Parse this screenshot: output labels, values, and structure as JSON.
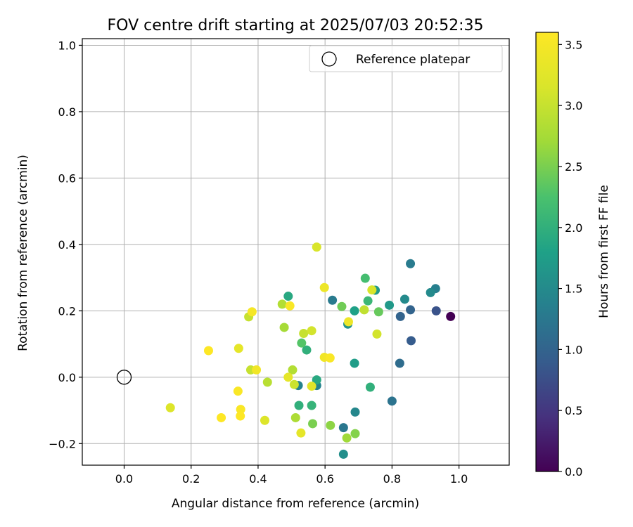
{
  "chart_data": {
    "type": "scatter",
    "title": "FOV centre drift starting at 2025/07/03 20:52:35",
    "xlabel": "Angular distance from reference (arcmin)",
    "ylabel": "Rotation from reference (arcmin)",
    "xlim": [
      -0.125,
      1.15
    ],
    "ylim": [
      -0.265,
      1.02
    ],
    "x_ticks": [
      0.0,
      0.2,
      0.4,
      0.6,
      0.8,
      1.0
    ],
    "x_tick_labels": [
      "0.0",
      "0.2",
      "0.4",
      "0.6",
      "0.8",
      "1.0"
    ],
    "y_ticks": [
      -0.2,
      0.0,
      0.2,
      0.4,
      0.6,
      0.8,
      1.0
    ],
    "y_tick_labels": [
      "−0.2",
      "0.0",
      "0.2",
      "0.4",
      "0.6",
      "0.8",
      "1.0"
    ],
    "grid": true,
    "legend": {
      "position": "top-right",
      "entries": [
        "Reference platepar"
      ]
    },
    "colorbar": {
      "label": "Hours from first FF file",
      "colormap": "viridis",
      "range": [
        0.0,
        3.6
      ],
      "ticks": [
        0.0,
        0.5,
        1.0,
        1.5,
        2.0,
        2.5,
        3.0,
        3.5
      ],
      "tick_labels": [
        "0.0",
        "0.5",
        "1.0",
        "1.5",
        "2.0",
        "2.5",
        "3.0",
        "3.5"
      ]
    },
    "reference_point": {
      "x": 0.0,
      "y": 0.0
    },
    "points": [
      {
        "x": 0.975,
        "y": 0.183,
        "c": 0.0
      },
      {
        "x": 0.932,
        "y": 0.2,
        "c": 0.8
      },
      {
        "x": 0.857,
        "y": 0.11,
        "c": 0.9
      },
      {
        "x": 0.825,
        "y": 0.183,
        "c": 1.0
      },
      {
        "x": 0.855,
        "y": 0.203,
        "c": 1.0
      },
      {
        "x": 0.823,
        "y": 0.042,
        "c": 1.1
      },
      {
        "x": 0.8,
        "y": -0.072,
        "c": 1.2
      },
      {
        "x": 0.655,
        "y": -0.152,
        "c": 1.25
      },
      {
        "x": 0.622,
        "y": 0.232,
        "c": 1.3
      },
      {
        "x": 0.855,
        "y": 0.342,
        "c": 1.3
      },
      {
        "x": 0.93,
        "y": 0.267,
        "c": 1.35
      },
      {
        "x": 0.52,
        "y": -0.025,
        "c": 1.4
      },
      {
        "x": 0.575,
        "y": -0.025,
        "c": 1.4
      },
      {
        "x": 0.69,
        "y": -0.105,
        "c": 1.45
      },
      {
        "x": 0.915,
        "y": 0.255,
        "c": 1.5
      },
      {
        "x": 0.838,
        "y": 0.235,
        "c": 1.5
      },
      {
        "x": 0.655,
        "y": -0.232,
        "c": 1.55
      },
      {
        "x": 0.668,
        "y": 0.16,
        "c": 1.6
      },
      {
        "x": 0.75,
        "y": 0.262,
        "c": 1.7
      },
      {
        "x": 0.792,
        "y": 0.217,
        "c": 1.7
      },
      {
        "x": 0.688,
        "y": 0.042,
        "c": 1.75
      },
      {
        "x": 0.688,
        "y": 0.2,
        "c": 1.8
      },
      {
        "x": 0.49,
        "y": 0.244,
        "c": 1.9
      },
      {
        "x": 0.575,
        "y": -0.008,
        "c": 1.9
      },
      {
        "x": 0.545,
        "y": 0.082,
        "c": 2.0
      },
      {
        "x": 0.735,
        "y": -0.03,
        "c": 2.0
      },
      {
        "x": 0.522,
        "y": -0.085,
        "c": 2.0
      },
      {
        "x": 0.56,
        "y": -0.085,
        "c": 2.05
      },
      {
        "x": 0.728,
        "y": 0.23,
        "c": 2.1
      },
      {
        "x": 0.72,
        "y": 0.298,
        "c": 2.2
      },
      {
        "x": 0.53,
        "y": 0.103,
        "c": 2.3
      },
      {
        "x": 0.76,
        "y": 0.197,
        "c": 2.4
      },
      {
        "x": 0.65,
        "y": 0.213,
        "c": 2.45
      },
      {
        "x": 0.563,
        "y": -0.14,
        "c": 2.5
      },
      {
        "x": 0.69,
        "y": -0.17,
        "c": 2.55
      },
      {
        "x": 0.616,
        "y": -0.145,
        "c": 2.6
      },
      {
        "x": 0.665,
        "y": -0.183,
        "c": 2.7
      },
      {
        "x": 0.478,
        "y": 0.15,
        "c": 2.75
      },
      {
        "x": 0.512,
        "y": -0.122,
        "c": 2.8
      },
      {
        "x": 0.472,
        "y": 0.22,
        "c": 2.85
      },
      {
        "x": 0.503,
        "y": 0.022,
        "c": 2.85
      },
      {
        "x": 0.428,
        "y": -0.015,
        "c": 2.9
      },
      {
        "x": 0.717,
        "y": 0.203,
        "c": 2.95
      },
      {
        "x": 0.378,
        "y": 0.022,
        "c": 3.0
      },
      {
        "x": 0.372,
        "y": 0.182,
        "c": 3.0
      },
      {
        "x": 0.536,
        "y": 0.132,
        "c": 3.0
      },
      {
        "x": 0.508,
        "y": -0.022,
        "c": 3.05
      },
      {
        "x": 0.755,
        "y": 0.13,
        "c": 3.1
      },
      {
        "x": 0.56,
        "y": 0.14,
        "c": 3.1
      },
      {
        "x": 0.74,
        "y": 0.263,
        "c": 3.15
      },
      {
        "x": 0.575,
        "y": 0.392,
        "c": 3.15
      },
      {
        "x": 0.42,
        "y": -0.13,
        "c": 3.2
      },
      {
        "x": 0.138,
        "y": -0.092,
        "c": 3.2
      },
      {
        "x": 0.56,
        "y": -0.027,
        "c": 3.25
      },
      {
        "x": 0.528,
        "y": -0.168,
        "c": 3.3
      },
      {
        "x": 0.49,
        "y": 0.0,
        "c": 3.3
      },
      {
        "x": 0.342,
        "y": 0.087,
        "c": 3.3
      },
      {
        "x": 0.67,
        "y": 0.167,
        "c": 3.4
      },
      {
        "x": 0.598,
        "y": 0.27,
        "c": 3.4
      },
      {
        "x": 0.598,
        "y": 0.06,
        "c": 3.45
      },
      {
        "x": 0.395,
        "y": 0.022,
        "c": 3.45
      },
      {
        "x": 0.382,
        "y": 0.197,
        "c": 3.5
      },
      {
        "x": 0.495,
        "y": 0.215,
        "c": 3.55
      },
      {
        "x": 0.615,
        "y": 0.058,
        "c": 3.55
      },
      {
        "x": 0.34,
        "y": -0.042,
        "c": 3.55
      },
      {
        "x": 0.348,
        "y": -0.097,
        "c": 3.55
      },
      {
        "x": 0.347,
        "y": -0.117,
        "c": 3.6
      },
      {
        "x": 0.29,
        "y": -0.122,
        "c": 3.6
      },
      {
        "x": 0.252,
        "y": 0.08,
        "c": 3.6
      }
    ]
  }
}
